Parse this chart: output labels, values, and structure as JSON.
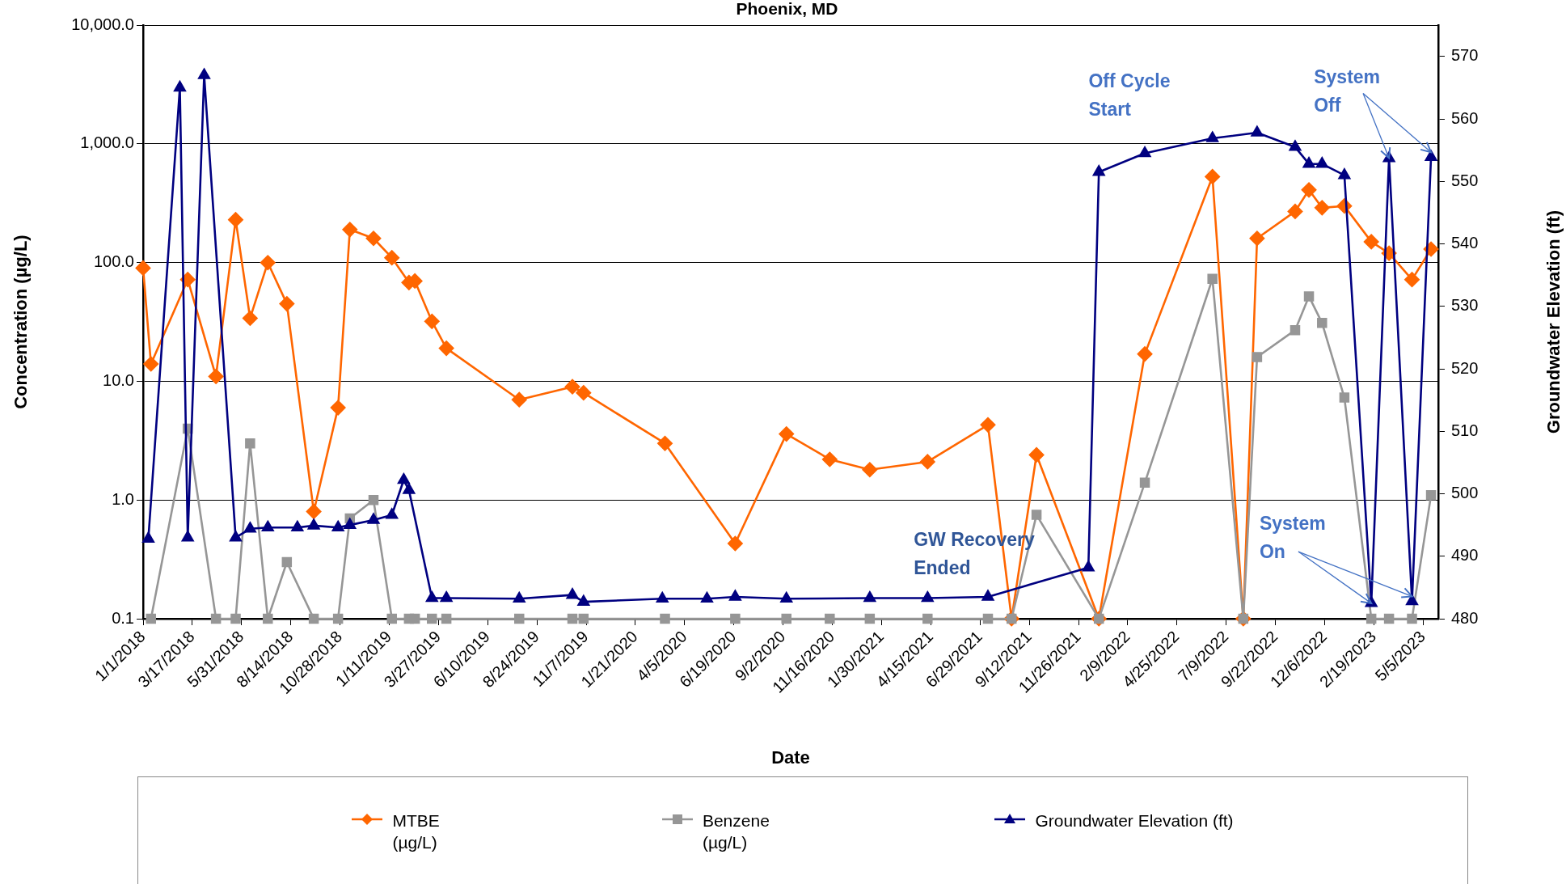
{
  "chart_data": {
    "type": "line",
    "title": "Phoenix, MD",
    "xlabel": "Date",
    "ylabel": "Concentration (µg/L)",
    "y2label": "Groundwater Elevation (ft)",
    "log": "y",
    "grid": "y",
    "legend": "bottom",
    "line_style": "solid",
    "xlim": [
      "2018-01-01",
      "2023-05-28"
    ],
    "xticks": [
      {
        "value": "2018-01-01",
        "label": "1/1/2018"
      },
      {
        "value": "2018-03-17",
        "label": "3/17/2018"
      },
      {
        "value": "2018-05-31",
        "label": "5/31/2018"
      },
      {
        "value": "2018-08-14",
        "label": "8/14/2018"
      },
      {
        "value": "2018-10-28",
        "label": "10/28/2018"
      },
      {
        "value": "2019-01-11",
        "label": "1/11/2019"
      },
      {
        "value": "2019-03-27",
        "label": "3/27/2019"
      },
      {
        "value": "2019-06-10",
        "label": "6/10/2019"
      },
      {
        "value": "2019-08-24",
        "label": "8/24/2019"
      },
      {
        "value": "2019-11-07",
        "label": "11/7/2019"
      },
      {
        "value": "2020-01-21",
        "label": "1/21/2020"
      },
      {
        "value": "2020-04-05",
        "label": "4/5/2020"
      },
      {
        "value": "2020-06-19",
        "label": "6/19/2020"
      },
      {
        "value": "2020-09-02",
        "label": "9/2/2020"
      },
      {
        "value": "2020-11-16",
        "label": "11/16/2020"
      },
      {
        "value": "2021-01-30",
        "label": "1/30/2021"
      },
      {
        "value": "2021-04-15",
        "label": "4/15/2021"
      },
      {
        "value": "2021-06-29",
        "label": "6/29/2021"
      },
      {
        "value": "2021-09-12",
        "label": "9/12/2021"
      },
      {
        "value": "2021-11-26",
        "label": "11/26/2021"
      },
      {
        "value": "2022-02-09",
        "label": "2/9/2022"
      },
      {
        "value": "2022-04-25",
        "label": "4/25/2022"
      },
      {
        "value": "2022-07-09",
        "label": "7/9/2022"
      },
      {
        "value": "2022-09-22",
        "label": "9/22/2022"
      },
      {
        "value": "2022-12-06",
        "label": "12/6/2022"
      },
      {
        "value": "2023-02-19",
        "label": "2/19/2023"
      },
      {
        "value": "2023-05-05",
        "label": "5/5/2023"
      }
    ],
    "ylim": [
      0.1,
      10000
    ],
    "yticks": [
      {
        "value": 0.1,
        "label": "0.1"
      },
      {
        "value": 1,
        "label": "1.0"
      },
      {
        "value": 10,
        "label": "10.0"
      },
      {
        "value": 100,
        "label": "100.0"
      },
      {
        "value": 1000,
        "label": "1,000.0"
      },
      {
        "value": 10000,
        "label": "10,000.0"
      }
    ],
    "y2lim": [
      480,
      575
    ],
    "y2ticks": [
      480,
      490,
      500,
      510,
      520,
      530,
      540,
      550,
      560,
      570
    ],
    "series": [
      {
        "name": "MTBE (µg/L)",
        "color": "#ff6600",
        "marker": "diamond",
        "x": [
          "2018-01-01",
          "2018-01-13",
          "2018-03-10",
          "2018-04-22",
          "2018-05-22",
          "2018-06-13",
          "2018-07-10",
          "2018-08-08",
          "2018-09-18",
          "2018-10-25",
          "2018-11-12",
          "2018-12-18",
          "2019-01-15",
          "2019-02-10",
          "2019-02-19",
          "2019-03-17",
          "2019-04-08",
          "2019-07-28",
          "2019-10-17",
          "2019-11-03",
          "2020-03-06",
          "2020-06-21",
          "2020-09-07",
          "2020-11-12",
          "2021-01-12",
          "2021-04-10",
          "2021-07-11",
          "2021-08-16",
          "2021-09-23",
          "2021-12-27",
          "2022-03-07",
          "2022-06-18",
          "2022-08-04",
          "2022-08-25",
          "2022-10-22",
          "2022-11-12",
          "2022-12-02",
          "2023-01-05",
          "2023-02-15",
          "2023-03-14",
          "2023-04-18",
          "2023-05-17"
        ],
        "values": [
          90,
          14,
          72,
          11,
          230,
          34,
          100,
          45,
          0.8,
          6,
          190,
          160,
          110,
          68,
          70,
          32,
          19,
          7,
          9,
          8,
          3,
          0.43,
          3.6,
          2.2,
          1.8,
          2.1,
          4.3,
          0.1,
          2.4,
          0.1,
          17,
          530,
          0.1,
          160,
          270,
          410,
          290,
          300,
          150,
          120,
          72,
          130
        ]
      },
      {
        "name": "Benzene (µg/L)",
        "color": "#969696",
        "marker": "square",
        "x": [
          "2018-01-13",
          "2018-03-10",
          "2018-04-22",
          "2018-05-22",
          "2018-06-13",
          "2018-07-10",
          "2018-08-08",
          "2018-09-18",
          "2018-10-25",
          "2018-11-12",
          "2018-12-18",
          "2019-01-15",
          "2019-02-10",
          "2019-02-19",
          "2019-03-17",
          "2019-04-08",
          "2019-07-28",
          "2019-10-17",
          "2019-11-03",
          "2020-03-06",
          "2020-06-21",
          "2020-09-07",
          "2020-11-12",
          "2021-01-12",
          "2021-04-10",
          "2021-07-11",
          "2021-08-16",
          "2021-09-23",
          "2021-12-27",
          "2022-03-07",
          "2022-06-18",
          "2022-08-04",
          "2022-08-25",
          "2022-10-22",
          "2022-11-12",
          "2022-12-02",
          "2023-01-05",
          "2023-02-15",
          "2023-03-14",
          "2023-04-18",
          "2023-05-17"
        ],
        "values": [
          0.1,
          4,
          0.1,
          0.1,
          3,
          0.1,
          0.3,
          0.1,
          0.1,
          0.7,
          1,
          0.1,
          0.1,
          0.1,
          0.1,
          0.1,
          0.1,
          0.1,
          0.1,
          0.1,
          0.1,
          0.1,
          0.1,
          0.1,
          0.1,
          0.1,
          0.1,
          0.75,
          0.1,
          1.4,
          73,
          0.1,
          16,
          27,
          52,
          31,
          7.3,
          0.1,
          0.1,
          0.1,
          1.1
        ]
      },
      {
        "name": "Groundwater Elevation (ft)",
        "color": "#000080",
        "marker": "triangle",
        "axis": "y2",
        "x": [
          "2018-01-09",
          "2018-02-26",
          "2018-03-10",
          "2018-04-04",
          "2018-05-22",
          "2018-06-13",
          "2018-07-10",
          "2018-08-24",
          "2018-09-18",
          "2018-10-25",
          "2018-11-12",
          "2018-12-18",
          "2019-01-15",
          "2019-02-02",
          "2019-02-10",
          "2019-03-17",
          "2019-04-08",
          "2019-07-28",
          "2019-10-17",
          "2019-11-03",
          "2020-03-02",
          "2020-05-09",
          "2020-06-21",
          "2020-09-07",
          "2021-01-12",
          "2021-04-10",
          "2021-07-11",
          "2021-12-11",
          "2021-12-27",
          "2022-03-07",
          "2022-06-18",
          "2022-08-25",
          "2022-10-22",
          "2022-11-12",
          "2022-12-02",
          "2023-01-05",
          "2023-02-15",
          "2023-03-14",
          "2023-04-18",
          "2023-05-17"
        ],
        "values": [
          492.8,
          565,
          493,
          567,
          493,
          494.4,
          494.6,
          494.6,
          494.9,
          494.6,
          495,
          495.8,
          496.6,
          502.2,
          500.6,
          483.3,
          483.3,
          483.2,
          483.8,
          482.7,
          483.2,
          483.2,
          483.5,
          483.2,
          483.3,
          483.3,
          483.5,
          488.2,
          551.5,
          554.5,
          556.9,
          557.8,
          555.5,
          552.8,
          552.8,
          551,
          482.5,
          553.7,
          482.8,
          553.9
        ]
      }
    ],
    "annotations": [
      "Off Cycle Start",
      {
        "text": "System Off",
        "x": "2023-03-14",
        "y": 760
      },
      {
        "text": "System On",
        "x": "2023-02-15",
        "y": 0.135
      },
      "GW Recovery Ended"
    ]
  }
}
